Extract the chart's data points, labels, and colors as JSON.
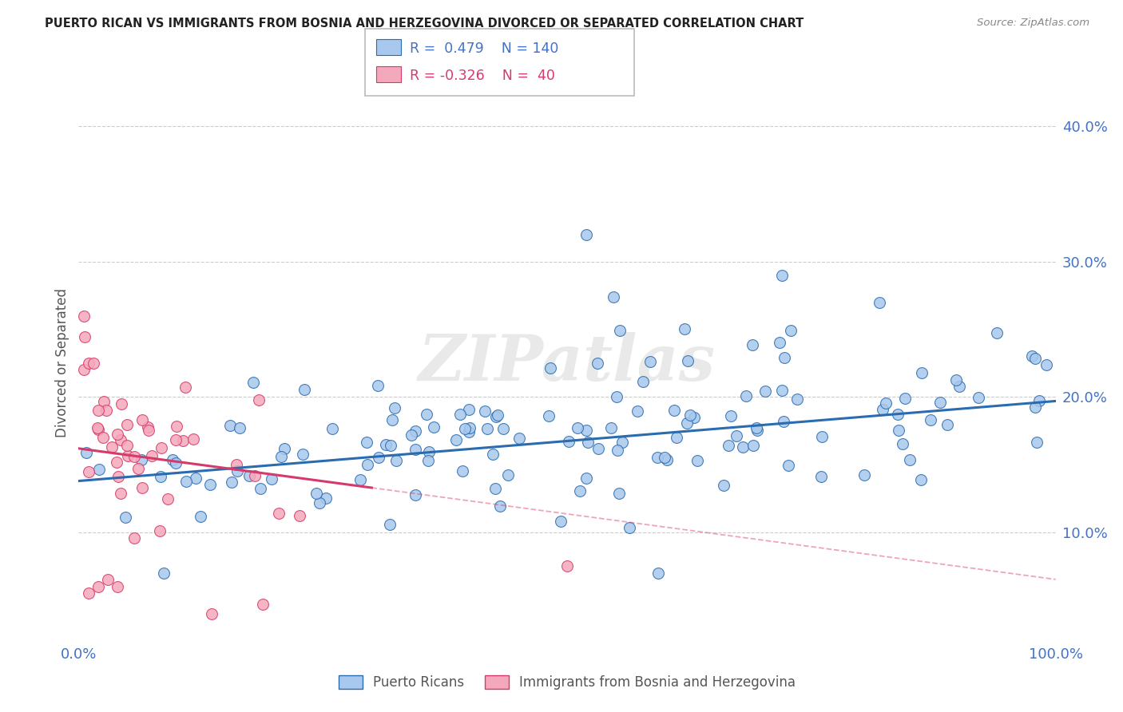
{
  "title": "PUERTO RICAN VS IMMIGRANTS FROM BOSNIA AND HERZEGOVINA DIVORCED OR SEPARATED CORRELATION CHART",
  "source": "Source: ZipAtlas.com",
  "ylabel": "Divorced or Separated",
  "xlim": [
    0.0,
    1.0
  ],
  "ylim": [
    0.02,
    0.43
  ],
  "blue_R": 0.479,
  "blue_N": 140,
  "pink_R": -0.326,
  "pink_N": 40,
  "blue_color": "#A8C8ED",
  "pink_color": "#F4A8BB",
  "blue_line_color": "#2B6CB0",
  "pink_line_color": "#D63A6A",
  "watermark": "ZIPatlas",
  "background_color": "#FFFFFF",
  "legend_label_blue": "Puerto Ricans",
  "legend_label_pink": "Immigrants from Bosnia and Herzegovina",
  "ytick_vals": [
    0.1,
    0.2,
    0.3,
    0.4
  ],
  "ytick_labels": [
    "10.0%",
    "20.0%",
    "30.0%",
    "40.0%"
  ],
  "blue_line_start_y": 0.138,
  "blue_line_end_y": 0.197,
  "pink_line_start_y": 0.162,
  "pink_line_end_x": 0.3,
  "pink_line_end_y": 0.133
}
